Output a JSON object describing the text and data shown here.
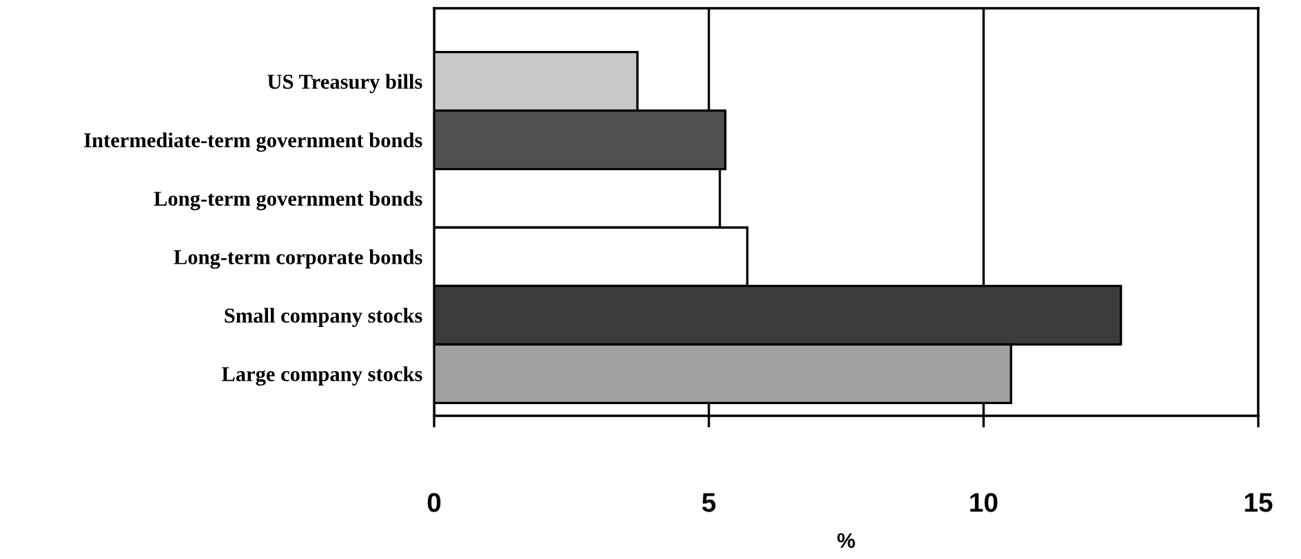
{
  "chart_data": {
    "type": "bar",
    "orientation": "horizontal",
    "xlabel": "%",
    "categories": [
      "US Treasury bills",
      "Intermediate-term government bonds",
      "Long-term government bonds",
      "Long-term corporate bonds",
      "Small company stocks",
      "Large company stocks"
    ],
    "values": [
      3.7,
      5.3,
      5.2,
      5.7,
      12.5,
      10.5
    ],
    "colors": [
      "#c8c8c8",
      "#505050",
      "#ffffff",
      "#ffffff",
      "#3c3c3c",
      "#a0a0a0"
    ],
    "xlim": [
      0,
      15
    ],
    "xticks": [
      0,
      5,
      10,
      15
    ],
    "grid": "x",
    "legend": false
  }
}
